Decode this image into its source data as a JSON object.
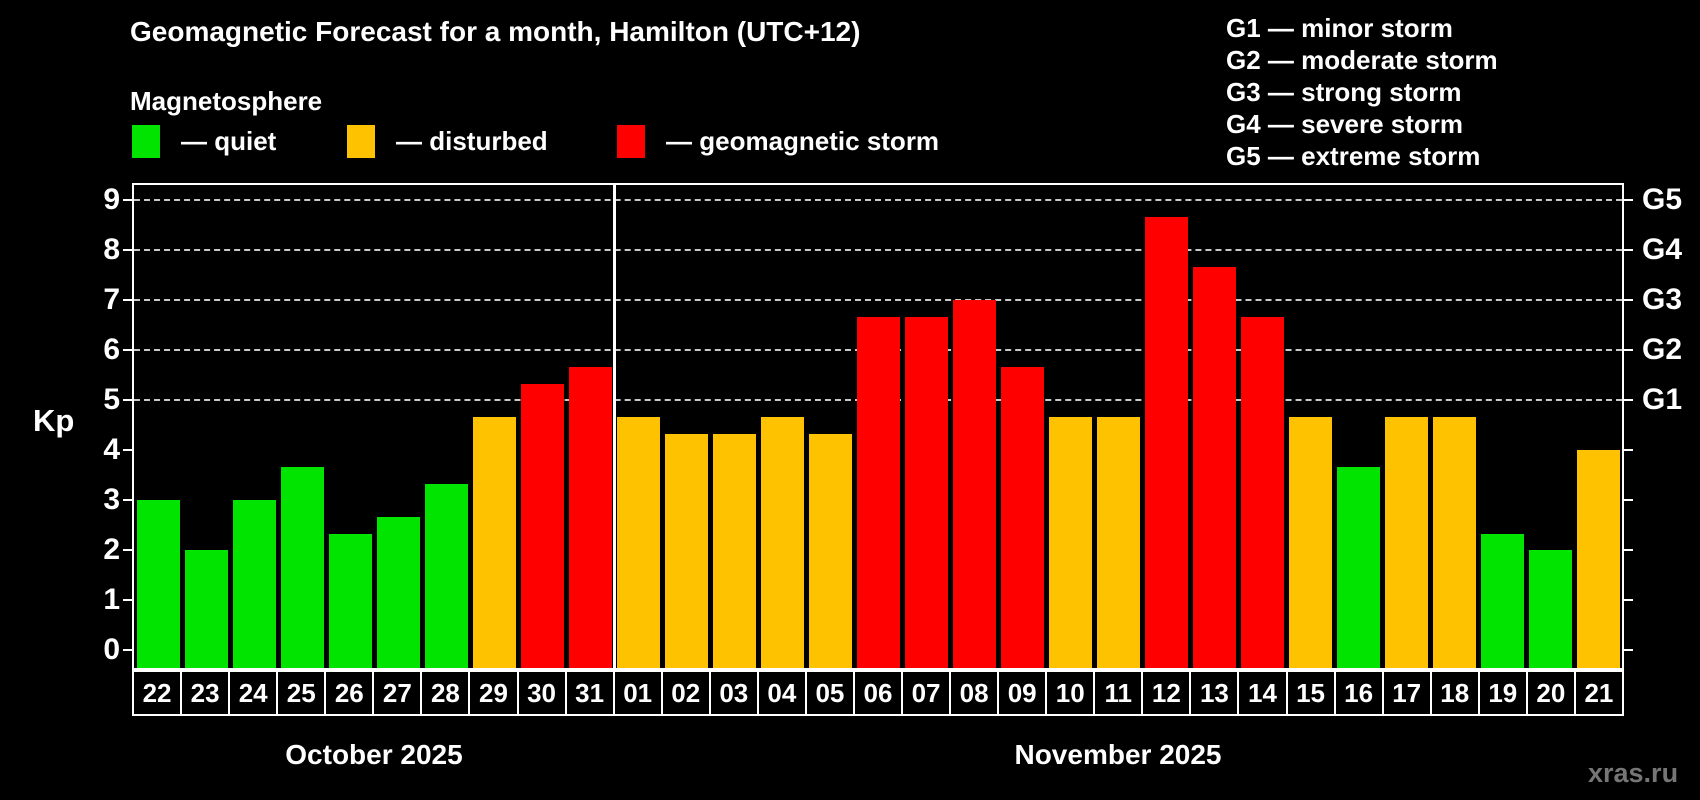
{
  "header": {
    "title": "Geomagnetic Forecast for a month, Hamilton (UTC+12)",
    "subtitle": "Magnetosphere"
  },
  "legend": [
    {
      "name": "quiet",
      "label": "— quiet",
      "color": "#00e400"
    },
    {
      "name": "disturbed",
      "label": "— disturbed",
      "color": "#ffc200"
    },
    {
      "name": "storm",
      "label": "— geomagnetic storm",
      "color": "#ff0000"
    }
  ],
  "g_scale_legend": [
    "G1 — minor storm",
    "G2 — moderate storm",
    "G3 — strong storm",
    "G4 — severe storm",
    "G5 — extreme storm"
  ],
  "watermark": "xras.ru",
  "chart_data": {
    "type": "bar",
    "title": "Geomagnetic Forecast for a month, Hamilton (UTC+12)",
    "ylabel": "Kp",
    "ylim": [
      -0.4,
      9.4
    ],
    "y_ticks": [
      0,
      1,
      2,
      3,
      4,
      5,
      6,
      7,
      8,
      9
    ],
    "gridlines_kp": [
      5,
      6,
      7,
      8,
      9
    ],
    "grid": "dashed horizontal lines at G-storm levels only",
    "legend_position": "top",
    "right_axis_labels": [
      {
        "kp": 5,
        "label": "G1"
      },
      {
        "kp": 6,
        "label": "G2"
      },
      {
        "kp": 7,
        "label": "G3"
      },
      {
        "kp": 8,
        "label": "G4"
      },
      {
        "kp": 9,
        "label": "G5"
      }
    ],
    "bar_states": {
      "quiet": "#00e400",
      "disturbed": "#ffc200",
      "storm": "#ff0000"
    },
    "months": [
      {
        "label": "October 2025",
        "days": [
          {
            "date": "22",
            "kp": 3.0,
            "state": "quiet"
          },
          {
            "date": "23",
            "kp": 2.0,
            "state": "quiet"
          },
          {
            "date": "24",
            "kp": 3.0,
            "state": "quiet"
          },
          {
            "date": "25",
            "kp": 3.67,
            "state": "quiet"
          },
          {
            "date": "26",
            "kp": 2.33,
            "state": "quiet"
          },
          {
            "date": "27",
            "kp": 2.67,
            "state": "quiet"
          },
          {
            "date": "28",
            "kp": 3.33,
            "state": "quiet"
          },
          {
            "date": "29",
            "kp": 4.67,
            "state": "disturbed"
          },
          {
            "date": "30",
            "kp": 5.33,
            "state": "storm"
          },
          {
            "date": "31",
            "kp": 5.67,
            "state": "storm"
          }
        ]
      },
      {
        "label": "November 2025",
        "days": [
          {
            "date": "01",
            "kp": 4.67,
            "state": "disturbed"
          },
          {
            "date": "02",
            "kp": 4.33,
            "state": "disturbed"
          },
          {
            "date": "03",
            "kp": 4.33,
            "state": "disturbed"
          },
          {
            "date": "04",
            "kp": 4.67,
            "state": "disturbed"
          },
          {
            "date": "05",
            "kp": 4.33,
            "state": "disturbed"
          },
          {
            "date": "06",
            "kp": 6.67,
            "state": "storm"
          },
          {
            "date": "07",
            "kp": 6.67,
            "state": "storm"
          },
          {
            "date": "08",
            "kp": 7.0,
            "state": "storm"
          },
          {
            "date": "09",
            "kp": 5.67,
            "state": "storm"
          },
          {
            "date": "10",
            "kp": 4.67,
            "state": "disturbed"
          },
          {
            "date": "11",
            "kp": 4.67,
            "state": "disturbed"
          },
          {
            "date": "12",
            "kp": 8.67,
            "state": "storm"
          },
          {
            "date": "13",
            "kp": 7.67,
            "state": "storm"
          },
          {
            "date": "14",
            "kp": 6.67,
            "state": "storm"
          },
          {
            "date": "15",
            "kp": 4.67,
            "state": "disturbed"
          },
          {
            "date": "16",
            "kp": 3.67,
            "state": "quiet"
          },
          {
            "date": "17",
            "kp": 4.67,
            "state": "disturbed"
          },
          {
            "date": "18",
            "kp": 4.67,
            "state": "disturbed"
          },
          {
            "date": "19",
            "kp": 2.33,
            "state": "quiet"
          },
          {
            "date": "20",
            "kp": 2.0,
            "state": "quiet"
          },
          {
            "date": "21",
            "kp": 4.0,
            "state": "disturbed"
          }
        ]
      }
    ]
  }
}
